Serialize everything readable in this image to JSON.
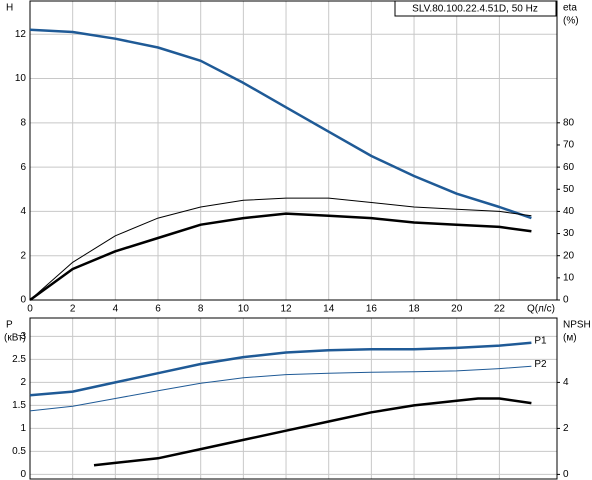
{
  "chart_data": [
    {
      "type": "line",
      "title": "SLV.80.100.22.4.51D, 50 Hz",
      "ylabel": "H",
      "y2label": "eta",
      "y2unit": "(%)",
      "xlabel": "Q(л/с)",
      "xlim": [
        0,
        24.7
      ],
      "xticks": [
        0,
        2,
        4,
        6,
        8,
        10,
        12,
        14,
        16,
        18,
        20,
        22
      ],
      "ylim": [
        0,
        13.5
      ],
      "yticks": [
        0,
        2,
        4,
        6,
        8,
        10,
        12
      ],
      "y2lim": [
        0,
        135
      ],
      "y2ticks": [
        0,
        10,
        20,
        30,
        40,
        50,
        60,
        70,
        80
      ],
      "grid": true,
      "x": [
        0,
        2,
        4,
        6,
        8,
        10,
        12,
        14,
        16,
        18,
        20,
        22,
        23.5
      ],
      "series": [
        {
          "color": "#1f5a96",
          "width": 2.5,
          "values": [
            12.2,
            12.1,
            11.8,
            11.4,
            10.8,
            9.8,
            8.7,
            7.6,
            6.5,
            5.6,
            4.8,
            4.2,
            3.7
          ]
        },
        {
          "color": "#000000",
          "width": 1,
          "axis": "y2",
          "values": [
            0,
            17,
            29,
            37,
            42,
            45,
            46,
            46,
            44,
            42,
            41,
            40,
            38
          ]
        },
        {
          "color": "#000000",
          "width": 2.5,
          "axis": "y2",
          "values": [
            0,
            14,
            22,
            28,
            34,
            37,
            39,
            38,
            37,
            35,
            34,
            33,
            31
          ]
        }
      ]
    },
    {
      "type": "line",
      "ylabel": "P",
      "yunit": "(кВт)",
      "y2label": "NPSH",
      "y2unit": "(м)",
      "xlim": [
        0,
        24.7
      ],
      "xticks": [
        0,
        2,
        4,
        6,
        8,
        10,
        12,
        14,
        16,
        18,
        20,
        22
      ],
      "xtick_labels": false,
      "ylim": [
        -0.1,
        3.4
      ],
      "yticks": [
        0,
        0.5,
        1,
        1.5,
        2,
        2.5,
        3
      ],
      "y2lim": [
        -0.2,
        6.8
      ],
      "y2ticks": [
        0,
        2,
        4
      ],
      "grid": true,
      "x": [
        0,
        2,
        4,
        6,
        8,
        10,
        12,
        14,
        16,
        18,
        20,
        22,
        23.5
      ],
      "series": [
        {
          "name": "P1",
          "color": "#1f5a96",
          "width": 2.5,
          "values": [
            1.72,
            1.8,
            2.0,
            2.2,
            2.4,
            2.55,
            2.65,
            2.7,
            2.72,
            2.72,
            2.75,
            2.8,
            2.86
          ]
        },
        {
          "name": "P2",
          "color": "#1f5a96",
          "width": 1,
          "values": [
            1.38,
            1.48,
            1.65,
            1.82,
            1.98,
            2.1,
            2.17,
            2.2,
            2.22,
            2.23,
            2.25,
            2.3,
            2.35
          ]
        },
        {
          "color": "#000000",
          "width": 2.5,
          "axis": "y2",
          "x": [
            3,
            4,
            6,
            8,
            10,
            12,
            14,
            16,
            18,
            20,
            21,
            22,
            23.5
          ],
          "values": [
            0.4,
            0.5,
            0.7,
            1.1,
            1.5,
            1.9,
            2.3,
            2.7,
            3.0,
            3.2,
            3.3,
            3.3,
            3.1
          ]
        }
      ]
    }
  ]
}
